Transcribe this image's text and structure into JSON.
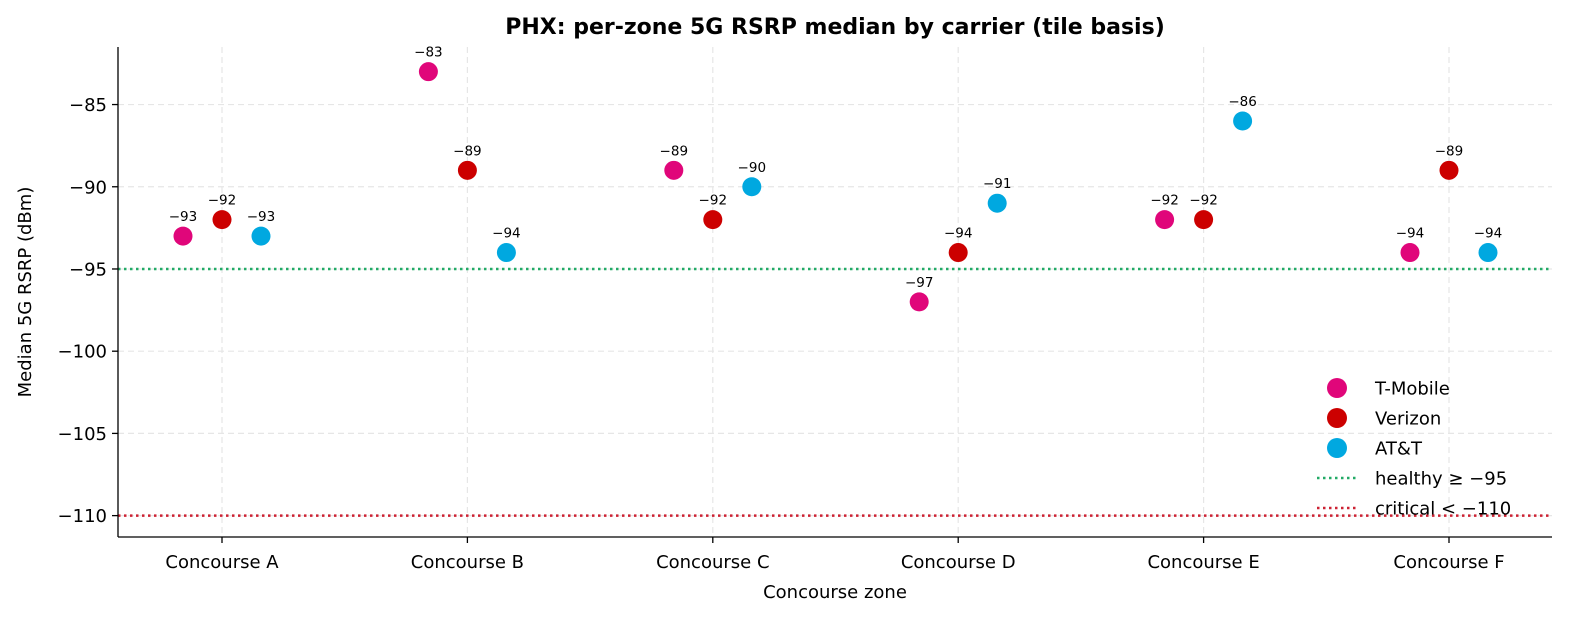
{
  "chart_data": {
    "type": "scatter",
    "title": "PHX: per-zone 5G RSRP median by carrier (tile basis)",
    "xlabel": "Concourse zone",
    "ylabel": "Median 5G RSRP (dBm)",
    "categories": [
      "Concourse A",
      "Concourse B",
      "Concourse C",
      "Concourse D",
      "Concourse E",
      "Concourse F"
    ],
    "ylim": [
      -111.3,
      -81.5
    ],
    "yticks": [
      -85,
      -90,
      -95,
      -100,
      -105,
      -110
    ],
    "ytick_labels": [
      "−85",
      "−90",
      "−95",
      "−100",
      "−105",
      "−110"
    ],
    "grid": true,
    "legend_position": "lower-right",
    "series": [
      {
        "name": "T-Mobile",
        "color": "#e0067a",
        "values": [
          -93,
          -83,
          -89,
          -97,
          -92,
          -94
        ],
        "labels": [
          "−93",
          "−83",
          "−89",
          "−97",
          "−92",
          "−94"
        ]
      },
      {
        "name": "Verizon",
        "color": "#cc0000",
        "values": [
          -92,
          -89,
          -92,
          -94,
          -92,
          -89
        ],
        "labels": [
          "−92",
          "−89",
          "−92",
          "−94",
          "−92",
          "−89"
        ]
      },
      {
        "name": "AT&T",
        "color": "#00a8e0",
        "values": [
          -93,
          -94,
          -90,
          -91,
          -86,
          -94
        ],
        "labels": [
          "−93",
          "−94",
          "−90",
          "−91",
          "−86",
          "−94"
        ]
      }
    ],
    "reference_lines": [
      {
        "name": "healthy ≥ −95",
        "value": -95,
        "color": "#22aa66"
      },
      {
        "name": "critical < −110",
        "value": -110,
        "color": "#cc2233"
      }
    ]
  }
}
